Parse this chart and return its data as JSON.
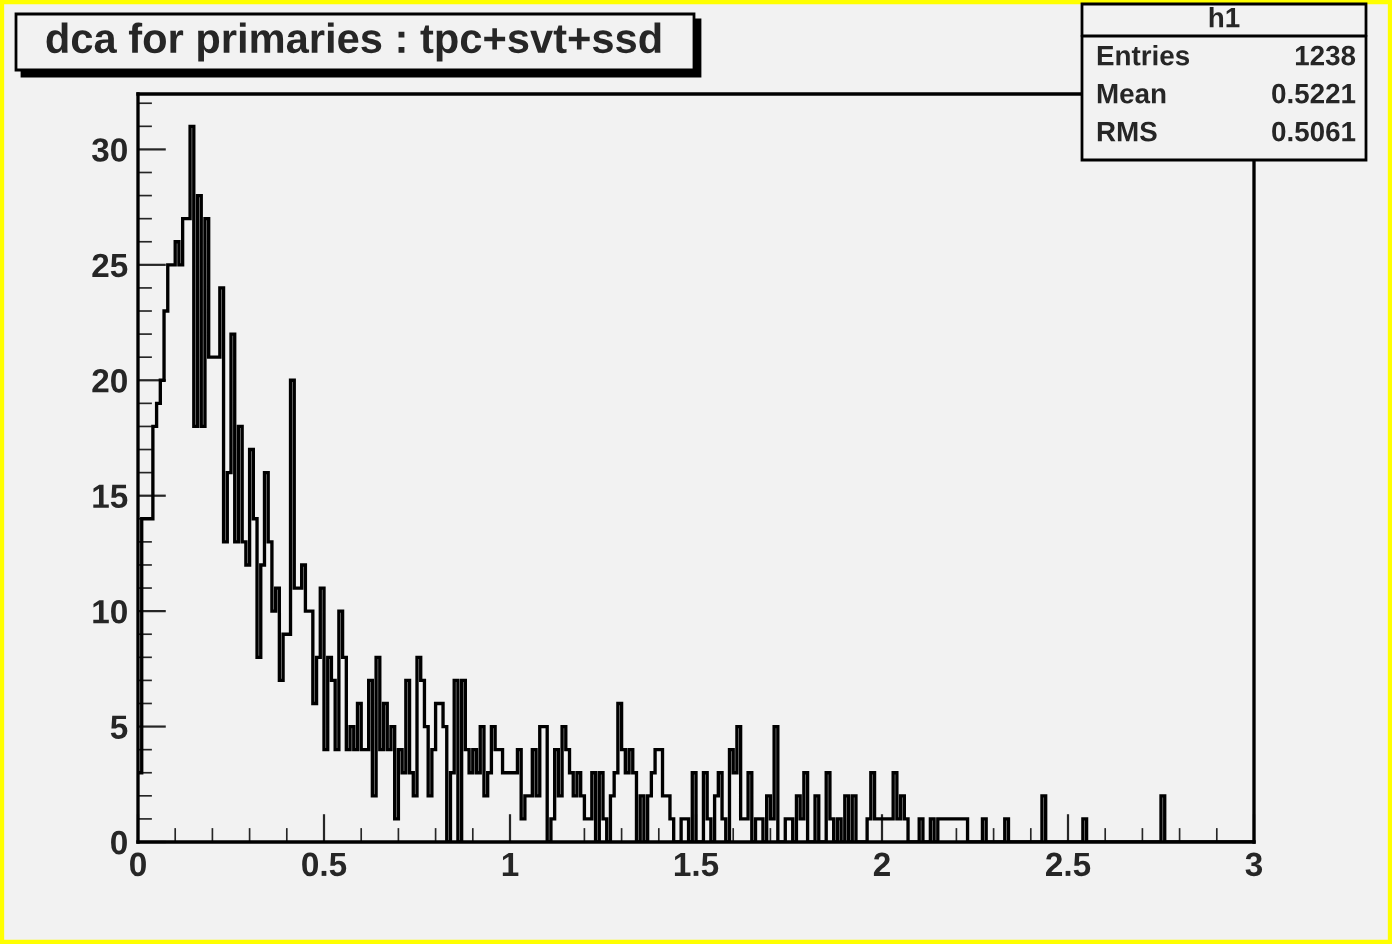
{
  "chart_data": {
    "type": "histogram",
    "title": "dca for primaries : tpc+svt+ssd",
    "annotations": [
      "h1",
      "Entries",
      "1238",
      "Mean",
      "0.5221",
      "RMS",
      "0.5061"
    ],
    "color": "#000000",
    "bins": [
      0,
      0.01,
      0.02,
      0.03,
      0.04,
      0.05,
      0.06,
      0.07,
      0.08,
      0.09,
      0.1,
      0.11,
      0.12,
      0.13,
      0.14,
      0.15,
      0.16,
      0.17,
      0.18,
      0.19,
      0.2,
      0.21,
      0.22,
      0.23,
      0.24,
      0.25,
      0.26,
      0.27,
      0.28,
      0.29,
      0.3,
      0.31,
      0.32,
      0.33,
      0.34,
      0.35,
      0.36,
      0.37,
      0.38,
      0.39,
      0.4,
      0.41,
      0.42,
      0.43,
      0.44,
      0.45,
      0.46,
      0.47,
      0.48,
      0.49,
      0.5,
      0.51,
      0.52,
      0.53,
      0.54,
      0.55,
      0.56,
      0.57,
      0.58,
      0.59,
      0.6,
      0.61,
      0.62,
      0.63,
      0.64,
      0.65,
      0.66,
      0.67,
      0.68,
      0.69,
      0.7,
      0.71,
      0.72,
      0.73,
      0.74,
      0.75,
      0.76,
      0.77,
      0.78,
      0.79,
      0.8,
      0.81,
      0.82,
      0.83,
      0.84,
      0.85,
      0.86,
      0.87,
      0.88,
      0.89,
      0.9,
      0.91,
      0.92,
      0.93,
      0.94,
      0.95,
      0.96,
      0.97,
      0.98,
      0.99,
      1,
      1.01,
      1.02,
      1.03,
      1.04,
      1.05,
      1.06,
      1.07,
      1.08,
      1.09,
      1.1,
      1.11,
      1.12,
      1.13,
      1.14,
      1.15,
      1.16,
      1.17,
      1.18,
      1.19,
      1.2,
      1.21,
      1.22,
      1.23,
      1.24,
      1.25,
      1.26,
      1.27,
      1.28,
      1.29,
      1.3,
      1.31,
      1.32,
      1.33,
      1.34,
      1.35,
      1.36,
      1.37,
      1.38,
      1.39,
      1.4,
      1.41,
      1.42,
      1.43,
      1.44,
      1.45,
      1.46,
      1.47,
      1.48,
      1.49,
      1.5,
      1.51,
      1.52,
      1.53,
      1.54,
      1.55,
      1.56,
      1.57,
      1.58,
      1.59,
      1.6,
      1.61,
      1.62,
      1.63,
      1.64,
      1.65,
      1.66,
      1.67,
      1.68,
      1.69,
      1.7,
      1.71,
      1.72,
      1.73,
      1.74,
      1.75,
      1.76,
      1.77,
      1.78,
      1.79,
      1.8,
      1.81,
      1.82,
      1.83,
      1.84,
      1.85,
      1.86,
      1.87,
      1.88,
      1.89,
      1.9,
      1.91,
      1.92,
      1.93,
      1.94,
      1.95,
      1.96,
      1.97,
      1.98,
      1.99,
      2,
      2.01,
      2.02,
      2.03,
      2.04,
      2.05,
      2.06,
      2.07,
      2.08,
      2.09,
      2.1,
      2.11,
      2.12,
      2.13,
      2.14,
      2.15,
      2.16,
      2.17,
      2.18,
      2.19,
      2.2,
      2.21,
      2.22,
      2.23,
      2.24,
      2.25,
      2.26,
      2.27,
      2.28,
      2.29,
      2.3,
      2.31,
      2.32,
      2.33,
      2.34,
      2.35,
      2.36,
      2.37,
      2.38,
      2.39,
      2.4,
      2.41,
      2.42,
      2.43,
      2.44,
      2.45,
      2.46,
      2.47,
      2.48,
      2.49,
      2.5,
      2.51,
      2.52,
      2.53,
      2.54,
      2.55,
      2.56,
      2.57,
      2.58,
      2.59,
      2.6,
      2.61,
      2.62,
      2.63,
      2.64,
      2.65,
      2.66,
      2.67,
      2.68,
      2.69,
      2.7,
      2.71,
      2.72,
      2.73,
      2.74,
      2.75,
      2.76,
      2.77,
      2.78,
      2.79,
      2.8,
      2.81,
      2.82,
      2.83,
      2.84,
      2.85,
      2.86,
      2.87,
      2.88,
      2.89,
      2.9,
      2.91,
      2.92,
      2.93,
      2.94,
      2.95,
      2.96,
      2.97,
      2.98,
      2.99,
      3
    ],
    "values": [
      3,
      14,
      14,
      14,
      18,
      19,
      20,
      23,
      25,
      25,
      26,
      25,
      27,
      27,
      31,
      18,
      28,
      18,
      27,
      21,
      21,
      21,
      24,
      13,
      16,
      22,
      13,
      18,
      13,
      12,
      17,
      14,
      8,
      12,
      16,
      13,
      10,
      11,
      7,
      9,
      9,
      20,
      11,
      11,
      12,
      10,
      10,
      6,
      8,
      11,
      4,
      8,
      7,
      4,
      10,
      8,
      4,
      5,
      4,
      6,
      4,
      4,
      7,
      2,
      8,
      4,
      6,
      4,
      5,
      1,
      4,
      3,
      7,
      3,
      2,
      8,
      7,
      5,
      2,
      4,
      6,
      6,
      5,
      0,
      3,
      7,
      0,
      7,
      4,
      3,
      4,
      3,
      5,
      2,
      3,
      5,
      4,
      4,
      3,
      3,
      3,
      3,
      4,
      1,
      2,
      2,
      4,
      2,
      5,
      5,
      0,
      1,
      4,
      2,
      5,
      4,
      3,
      2,
      3,
      2,
      1,
      1,
      3,
      0,
      3,
      1,
      0,
      2,
      3,
      6,
      4,
      3,
      4,
      3,
      0,
      2,
      0,
      2,
      3,
      4,
      4,
      2,
      2,
      1,
      0,
      0,
      1,
      1,
      0,
      3,
      0,
      0,
      3,
      1,
      0,
      2,
      3,
      1,
      0,
      4,
      3,
      5,
      1,
      1,
      3,
      0,
      1,
      1,
      0,
      2,
      1,
      5,
      0,
      0,
      1,
      1,
      0,
      2,
      1,
      3,
      0,
      0,
      2,
      0,
      0,
      3,
      1,
      0,
      1,
      0,
      2,
      0,
      2,
      0,
      0,
      0,
      1,
      3,
      1,
      1,
      1,
      1,
      1,
      3,
      1,
      2,
      1,
      0,
      0,
      0,
      1,
      0,
      0,
      1,
      0,
      1,
      1,
      1,
      1,
      1,
      1,
      1,
      1,
      0,
      0,
      0,
      0,
      1,
      0,
      0,
      0,
      0,
      0,
      1,
      0,
      0,
      0,
      0,
      0,
      0,
      0,
      0,
      0,
      2,
      0,
      0,
      0,
      0,
      0,
      0,
      0,
      0,
      0,
      0,
      1,
      0,
      0,
      0,
      0,
      0,
      0,
      0,
      0,
      0,
      0,
      0,
      0,
      0,
      0,
      0,
      0,
      0,
      0,
      0,
      0,
      2,
      0,
      0,
      0,
      0,
      0,
      0,
      0,
      0,
      0,
      0,
      0,
      0,
      0,
      0,
      0,
      0,
      0,
      0,
      0,
      0,
      0,
      0,
      0,
      0
    ],
    "xlim": [
      0,
      3
    ],
    "ylim": [
      0,
      32.4
    ],
    "xticks": [
      0,
      0.5,
      1,
      1.5,
      2,
      2.5,
      3
    ],
    "yticks": [
      0,
      5,
      10,
      15,
      20,
      25,
      30
    ],
    "grid": false
  }
}
